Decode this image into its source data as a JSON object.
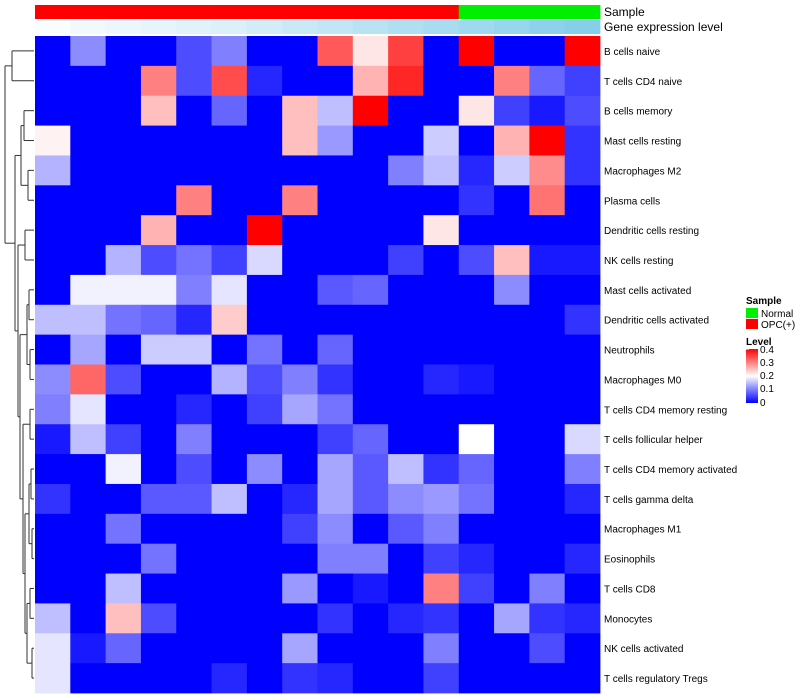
{
  "chart_data": {
    "type": "heatmap",
    "annotation_labels": {
      "sample": "Sample",
      "expression": "Gene expression level"
    },
    "legend": {
      "sample_title": "Sample",
      "sample_items": [
        {
          "label": "Normal",
          "color": "#00ee00"
        },
        {
          "label": "OPC(+)",
          "color": "#ff0000"
        }
      ],
      "level_title": "Level",
      "level_ticks": [
        "0.4",
        "0.3",
        "0.2",
        "0.1",
        "0"
      ]
    },
    "color_scale": {
      "low": "#0000ff",
      "mid": "#ffffff",
      "high": "#ff0000",
      "domain": [
        0,
        0.2,
        0.4
      ]
    },
    "sample_groups": [
      "OPC(+)",
      "OPC(+)",
      "OPC(+)",
      "OPC(+)",
      "OPC(+)",
      "OPC(+)",
      "OPC(+)",
      "OPC(+)",
      "OPC(+)",
      "OPC(+)",
      "OPC(+)",
      "OPC(+)",
      "Normal",
      "Normal",
      "Normal",
      "Normal"
    ],
    "expression_bar": [
      0.02,
      0.05,
      0.07,
      0.09,
      0.11,
      0.13,
      0.16,
      0.19,
      0.22,
      0.25,
      0.28,
      0.31,
      0.34,
      0.37,
      0.4,
      0.43
    ],
    "rows": [
      "B cells naive",
      "T cells CD4 naive",
      "B cells memory",
      "Mast cells resting",
      "Macrophages M2",
      "Plasma cells",
      "Dendritic cells resting",
      "NK cells resting",
      "Mast cells activated",
      "Dendritic cells activated",
      "Neutrophils",
      "Macrophages M0",
      "T cells CD4 memory resting",
      "T cells follicular helper",
      "T cells CD4 memory activated",
      "T cells gamma delta",
      "Macrophages M1",
      "Eosinophils",
      "T cells CD8",
      "Monocytes",
      "NK cells activated",
      "T cells regulatory  Tregs"
    ],
    "values": [
      [
        0,
        0.11,
        0,
        0,
        0.06,
        0.1,
        0,
        0,
        0.33,
        0.22,
        0.35,
        0,
        0.4,
        0,
        0,
        0.4
      ],
      [
        0,
        0,
        0,
        0.3,
        0.06,
        0.34,
        0.03,
        0,
        0,
        0.26,
        0.37,
        0,
        0,
        0.3,
        0.08,
        0.05
      ],
      [
        0,
        0,
        0,
        0.25,
        0,
        0.08,
        0,
        0.25,
        0.15,
        0.4,
        0,
        0,
        0.22,
        0.05,
        0.02,
        0.06
      ],
      [
        0.21,
        0,
        0,
        0,
        0,
        0,
        0,
        0.25,
        0.12,
        0,
        0,
        0.16,
        0,
        0.26,
        0.4,
        0.04
      ],
      [
        0.14,
        0,
        0,
        0,
        0,
        0,
        0,
        0,
        0,
        0,
        0.1,
        0.15,
        0.03,
        0.16,
        0.29,
        0.04
      ],
      [
        0,
        0,
        0,
        0,
        0.3,
        0,
        0,
        0.3,
        0,
        0,
        0,
        0,
        0.04,
        0,
        0.31,
        0
      ],
      [
        0,
        0,
        0,
        0.26,
        0,
        0,
        0.4,
        0,
        0,
        0,
        0,
        0.22,
        0,
        0,
        0,
        0
      ],
      [
        0,
        0,
        0.14,
        0.06,
        0.09,
        0.05,
        0.17,
        0,
        0,
        0,
        0.05,
        0,
        0.06,
        0.25,
        0.02,
        0.02
      ],
      [
        0,
        0.19,
        0.19,
        0.19,
        0.1,
        0.18,
        0,
        0,
        0.07,
        0.08,
        0,
        0,
        0,
        0.11,
        0,
        0
      ],
      [
        0.15,
        0.15,
        0.09,
        0.08,
        0.03,
        0.24,
        0,
        0,
        0,
        0,
        0,
        0,
        0,
        0,
        0,
        0.04
      ],
      [
        0,
        0.13,
        0,
        0.16,
        0.16,
        0,
        0.09,
        0,
        0.08,
        0,
        0,
        0,
        0,
        0,
        0,
        0
      ],
      [
        0.11,
        0.32,
        0.06,
        0,
        0,
        0.14,
        0.06,
        0.1,
        0.04,
        0,
        0,
        0.03,
        0.02,
        0,
        0,
        0
      ],
      [
        0.1,
        0.18,
        0,
        0,
        0.03,
        0,
        0.05,
        0.13,
        0.09,
        0,
        0,
        0,
        0,
        0,
        0,
        0
      ],
      [
        0.02,
        0.15,
        0.05,
        0,
        0.1,
        0,
        0,
        0,
        0.05,
        0.08,
        0,
        0,
        0.2,
        0,
        0,
        0.17
      ],
      [
        0,
        0,
        0.19,
        0,
        0.06,
        0,
        0.11,
        0,
        0.13,
        0.07,
        0.15,
        0.04,
        0.08,
        0,
        0,
        0.1
      ],
      [
        0.04,
        0,
        0,
        0.07,
        0.07,
        0.15,
        0,
        0.03,
        0.13,
        0.07,
        0.11,
        0.12,
        0.09,
        0,
        0,
        0.03
      ],
      [
        0,
        0,
        0.09,
        0,
        0,
        0,
        0,
        0.05,
        0.11,
        0,
        0.07,
        0.1,
        0,
        0,
        0,
        0
      ],
      [
        0,
        0,
        0,
        0.09,
        0,
        0,
        0,
        0,
        0.1,
        0.1,
        0,
        0.05,
        0.03,
        0,
        0,
        0.03
      ],
      [
        0,
        0,
        0.15,
        0,
        0,
        0,
        0,
        0.12,
        0,
        0.02,
        0,
        0.3,
        0.05,
        0,
        0.1,
        0
      ],
      [
        0.15,
        0,
        0.25,
        0.06,
        0,
        0,
        0,
        0,
        0.04,
        0,
        0.03,
        0.04,
        0,
        0.13,
        0.04,
        0.03
      ],
      [
        0.18,
        0.02,
        0.08,
        0,
        0,
        0,
        0,
        0.13,
        0,
        0,
        0,
        0.1,
        0,
        0,
        0.06,
        0
      ],
      [
        0.18,
        0,
        0,
        0,
        0,
        0.03,
        0,
        0.04,
        0.03,
        0,
        0,
        0.05,
        0,
        0,
        0,
        0
      ]
    ]
  }
}
